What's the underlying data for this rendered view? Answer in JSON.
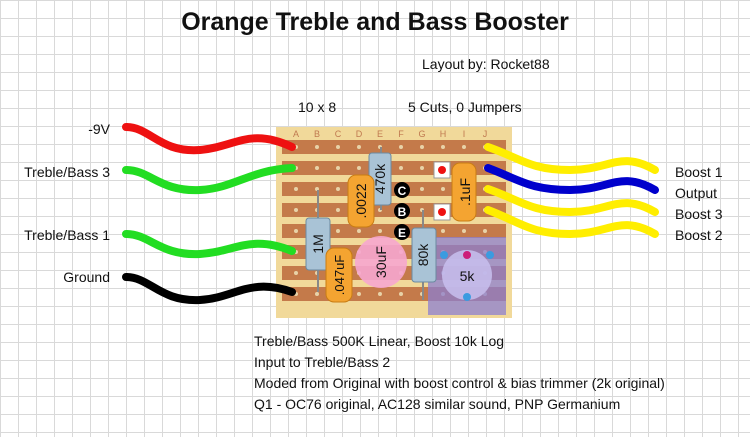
{
  "title": "Orange Treble and Bass Booster",
  "credit": "Layout by: Rocket88",
  "board_size": "10 x 8",
  "cuts_jumpers": "5 Cuts, 0 Jumpers",
  "columns": [
    "A",
    "B",
    "C",
    "D",
    "E",
    "F",
    "G",
    "H",
    "I",
    "J"
  ],
  "left_labels": [
    "-9V",
    "Treble/Bass 3",
    "Treble/Bass 1",
    "Ground"
  ],
  "right_labels": [
    "Boost 1",
    "Output",
    "Boost 3",
    "Boost 2"
  ],
  "components": {
    "c0022": ".0022",
    "c470k": "470k",
    "c1uF": ".1uF",
    "c1M": "1M",
    "c047uF": ".047uF",
    "c30uF": "30uF",
    "c80k": "80k",
    "c5k": "5k"
  },
  "transistor_pins": [
    "C",
    "B",
    "E"
  ],
  "notes": [
    "Treble/Bass 500K Linear, Boost 10k Log",
    "Input to Treble/Bass 2",
    "Moded from Original with boost control & bias trimmer (2k original)",
    "Q1 - OC76 original, AC128 similar sound, PNP Germanium"
  ],
  "colors": {
    "board": "#f1d99a",
    "strip": "#c47a4a",
    "wire_red": "#ee1111",
    "wire_green": "#22dd22",
    "wire_black": "#000000",
    "wire_yellow": "#ffee00",
    "wire_blue": "#0000cc",
    "resistor": "#a9c3d6",
    "cap_orange": "#f4a431",
    "cap_pink": "#f6a6cf",
    "trimmer": "#8c7fd0"
  }
}
